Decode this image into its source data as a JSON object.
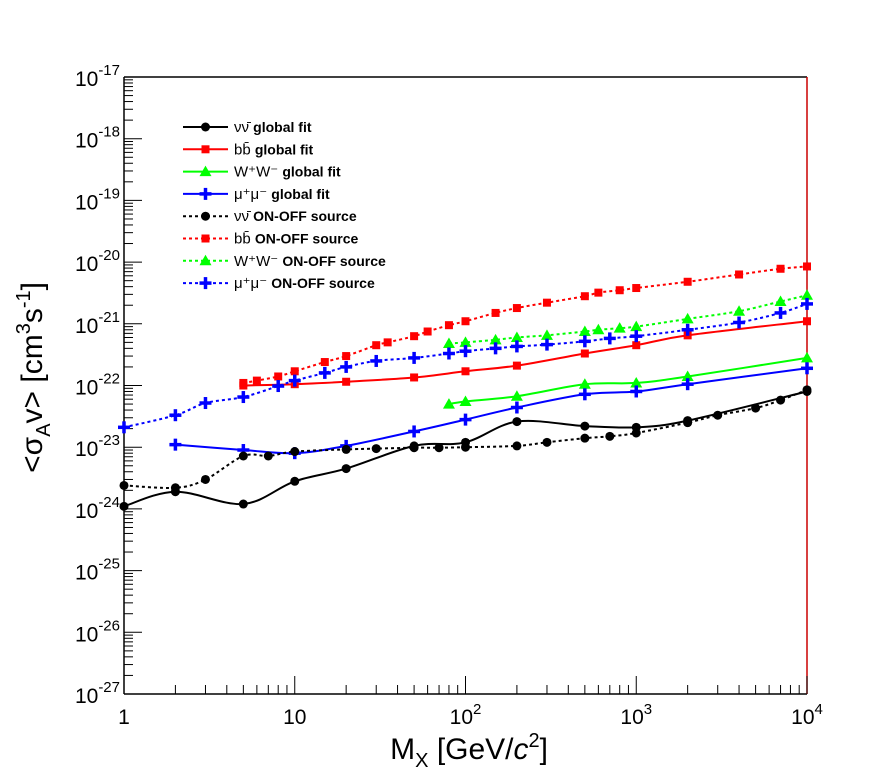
{
  "chart_data": {
    "type": "line",
    "title": "",
    "xlabel": {
      "main": "M",
      "sub": "X",
      "rest": " [GeV/",
      "italic": "c",
      "sup": "2",
      "end": "]"
    },
    "ylabel": {
      "open": "<σ",
      "sub": "A",
      "mid": "v> [cm",
      "sup1": "3",
      "mid2": "s",
      "sup2": "-1",
      "end": "]"
    },
    "x_scale": "log",
    "y_scale": "log",
    "xlim": [
      1,
      10000
    ],
    "ylim": [
      1e-27,
      1e-17
    ],
    "x_ticks": [
      {
        "value": 1,
        "base": "1",
        "exp": ""
      },
      {
        "value": 10,
        "base": "10",
        "exp": ""
      },
      {
        "value": 100,
        "base": "10",
        "exp": "2"
      },
      {
        "value": 1000,
        "base": "10",
        "exp": "3"
      },
      {
        "value": 10000,
        "base": "10",
        "exp": "4"
      }
    ],
    "y_ticks": [
      {
        "value": 1e-27,
        "base": "10",
        "exp": "-27"
      },
      {
        "value": 1e-26,
        "base": "10",
        "exp": "-26"
      },
      {
        "value": 1e-25,
        "base": "10",
        "exp": "-25"
      },
      {
        "value": 1e-24,
        "base": "10",
        "exp": "-24"
      },
      {
        "value": 1e-23,
        "base": "10",
        "exp": "-23"
      },
      {
        "value": 1e-22,
        "base": "10",
        "exp": "-22"
      },
      {
        "value": 1e-21,
        "base": "10",
        "exp": "-21"
      },
      {
        "value": 1e-20,
        "base": "10",
        "exp": "-20"
      },
      {
        "value": 1e-19,
        "base": "10",
        "exp": "-19"
      },
      {
        "value": 1e-18,
        "base": "10",
        "exp": "-18"
      },
      {
        "value": 1e-17,
        "base": "10",
        "exp": "-17"
      }
    ],
    "grid": false,
    "legend_position": "top-left",
    "series": [
      {
        "id": "nu-global",
        "channel": "νν̄",
        "label": "global fit",
        "color": "#000000",
        "dash": "solid",
        "marker": "circle",
        "x": [
          1,
          2,
          5,
          10,
          20,
          50,
          100,
          200,
          500,
          1000,
          2000,
          10000
        ],
        "y": [
          1.1e-24,
          1.9e-24,
          1.2e-24,
          2.8e-24,
          4.5e-24,
          1.05e-23,
          1.2e-23,
          2.6e-23,
          2.2e-23,
          2.1e-23,
          2.7e-23,
          8e-23
        ]
      },
      {
        "id": "bb-global",
        "channel": "bb̄",
        "label": "global fit",
        "color": "#ff0000",
        "dash": "solid",
        "marker": "square",
        "x": [
          5,
          10,
          20,
          50,
          100,
          200,
          500,
          1000,
          2000,
          10000
        ],
        "y": [
          1e-22,
          1.05e-22,
          1.15e-22,
          1.35e-22,
          1.7e-22,
          2.1e-22,
          3.3e-22,
          4.5e-22,
          6.5e-22,
          1.1e-21
        ]
      },
      {
        "id": "ww-global",
        "channel": "W⁺W⁻",
        "label": "global fit",
        "color": "#00ff00",
        "dash": "solid",
        "marker": "triangle",
        "x": [
          80,
          100,
          200,
          500,
          1000,
          2000,
          10000
        ],
        "y": [
          5e-23,
          5.5e-23,
          6.7e-23,
          1.05e-22,
          1.1e-22,
          1.4e-22,
          2.8e-22
        ]
      },
      {
        "id": "mumu-global",
        "channel": "μ⁺μ⁻",
        "label": "global fit",
        "color": "#0000ff",
        "dash": "solid",
        "marker": "cross",
        "x": [
          2,
          5,
          10,
          20,
          50,
          100,
          200,
          500,
          1000,
          2000,
          10000
        ],
        "y": [
          1.1e-23,
          9e-24,
          8e-24,
          1.05e-23,
          1.8e-23,
          2.8e-23,
          4.4e-23,
          7.2e-23,
          8e-23,
          1.05e-22,
          1.9e-22
        ]
      },
      {
        "id": "nu-onoff",
        "channel": "νν̄",
        "label": "ON-OFF source",
        "color": "#000000",
        "dash": "dotted",
        "marker": "circle",
        "x": [
          1,
          2,
          3,
          5,
          7,
          10,
          20,
          30,
          50,
          70,
          100,
          200,
          300,
          500,
          700,
          1000,
          2000,
          3000,
          5000,
          7000,
          10000
        ],
        "y": [
          2.4e-24,
          2.2e-24,
          3e-24,
          7.2e-24,
          7.2e-24,
          8.5e-24,
          9.2e-24,
          9.5e-24,
          9.8e-24,
          9.8e-24,
          1e-23,
          1.05e-23,
          1.2e-23,
          1.4e-23,
          1.5e-23,
          1.7e-23,
          2.5e-23,
          3.3e-23,
          4.3e-23,
          5.8e-23,
          8.5e-23
        ]
      },
      {
        "id": "bb-onoff",
        "channel": "bb̄",
        "label": "ON-OFF source",
        "color": "#ff0000",
        "dash": "dotted",
        "marker": "square",
        "x": [
          5,
          6,
          8,
          10,
          15,
          20,
          30,
          35,
          50,
          60,
          80,
          100,
          150,
          200,
          300,
          500,
          600,
          800,
          1000,
          2000,
          4000,
          7000,
          10000
        ],
        "y": [
          1.1e-22,
          1.2e-22,
          1.4e-22,
          1.7e-22,
          2.4e-22,
          3e-22,
          4.5e-22,
          5e-22,
          6.3e-22,
          7.5e-22,
          9.5e-22,
          1.1e-21,
          1.5e-21,
          1.8e-21,
          2.2e-21,
          2.8e-21,
          3.2e-21,
          3.5e-21,
          3.8e-21,
          4.8e-21,
          6.3e-21,
          7.8e-21,
          8.5e-21
        ]
      },
      {
        "id": "ww-onoff",
        "channel": "W⁺W⁻",
        "label": "ON-OFF source",
        "color": "#00ff00",
        "dash": "dotted",
        "marker": "triangle",
        "x": [
          80,
          100,
          150,
          200,
          300,
          500,
          600,
          800,
          1000,
          2000,
          4000,
          7000,
          10000
        ],
        "y": [
          4.8e-22,
          5e-22,
          5.5e-22,
          6e-22,
          6.5e-22,
          7.5e-22,
          8e-22,
          8.5e-22,
          9e-22,
          1.2e-21,
          1.6e-21,
          2.3e-21,
          2.9e-21
        ]
      },
      {
        "id": "mumu-onoff",
        "channel": "μ⁺μ⁻",
        "label": "ON-OFF source",
        "color": "#0000ff",
        "dash": "dotted",
        "marker": "cross",
        "x": [
          1,
          2,
          3,
          5,
          8,
          10,
          15,
          20,
          30,
          50,
          80,
          100,
          150,
          200,
          300,
          500,
          700,
          1000,
          2000,
          4000,
          7000,
          10000
        ],
        "y": [
          2.1e-23,
          3.3e-23,
          5.2e-23,
          6.5e-23,
          9.8e-23,
          1.2e-22,
          1.6e-22,
          2e-22,
          2.5e-22,
          2.8e-22,
          3.3e-22,
          3.6e-22,
          4e-22,
          4.3e-22,
          4.6e-22,
          5.2e-22,
          5.8e-22,
          6.3e-22,
          8e-22,
          1.05e-21,
          1.5e-21,
          2.1e-21
        ]
      }
    ]
  }
}
